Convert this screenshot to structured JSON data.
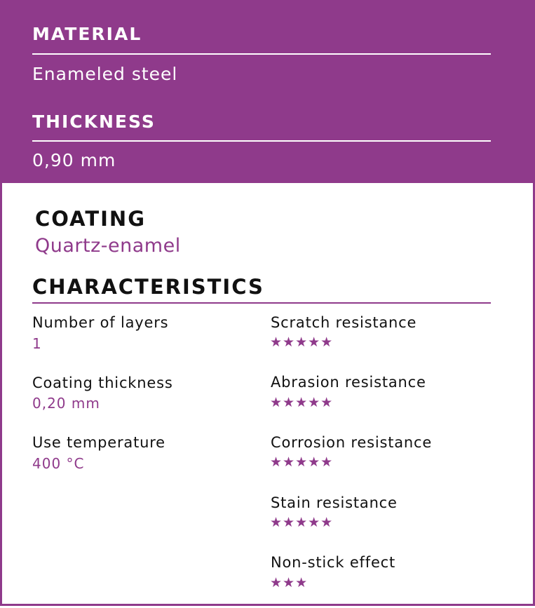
{
  "material": {
    "title": "MATERIAL",
    "value": "Enameled steel"
  },
  "thickness": {
    "title": "THICKNESS",
    "value": "0,90 mm"
  },
  "coating": {
    "title": "COATING",
    "value": "Quartz-enamel"
  },
  "characteristics": {
    "title": "CHARACTERISTICS",
    "left": [
      {
        "label": "Number of layers",
        "value": "1"
      },
      {
        "label": "Coating thickness",
        "value": "0,20 mm"
      },
      {
        "label": "Use temperature",
        "value": "400 °C"
      }
    ],
    "right": [
      {
        "label": "Scratch resistance",
        "rating": 5,
        "stars": "★★★★★"
      },
      {
        "label": "Abrasion resistance",
        "rating": 5,
        "stars": "★★★★★"
      },
      {
        "label": "Corrosion resistance",
        "rating": 5,
        "stars": "★★★★★"
      },
      {
        "label": "Stain resistance",
        "rating": 5,
        "stars": "★★★★★"
      },
      {
        "label": "Non-stick effect",
        "rating": 3,
        "stars": "★★★"
      }
    ]
  },
  "colors": {
    "accent": "#8f3a8b",
    "text": "#111111"
  }
}
